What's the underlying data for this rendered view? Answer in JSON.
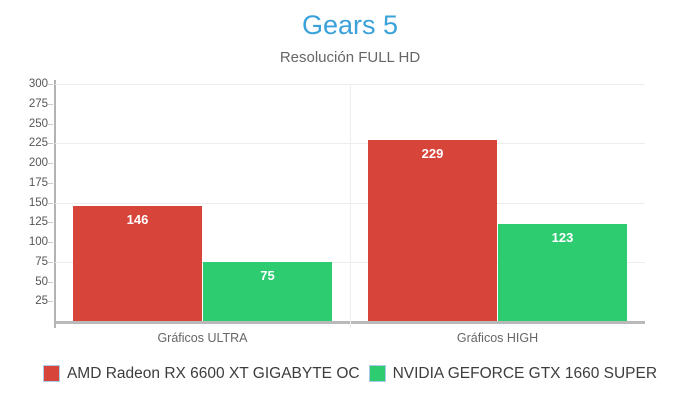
{
  "header": {
    "title": "Gears 5",
    "subtitle": "Resolución FULL HD"
  },
  "chart_data": {
    "type": "bar",
    "title": "Gears 5",
    "subtitle": "Resolución FULL HD",
    "categories": [
      "Gráficos ULTRA",
      "Gráficos HIGH"
    ],
    "series": [
      {
        "name": "AMD Radeon RX 6600 XT GIGABYTE OC",
        "color": "#d7443a",
        "values": [
          146,
          229
        ]
      },
      {
        "name": "NVIDIA GEFORCE GTX 1660 SUPER",
        "color": "#2ecc71",
        "values": [
          75,
          123
        ]
      }
    ],
    "ylim": [
      0,
      300
    ],
    "yticks": [
      300,
      275,
      250,
      225,
      200,
      175,
      150,
      125,
      100,
      75,
      50,
      25
    ],
    "gridline_values": [
      300,
      225,
      150,
      75
    ],
    "grid": true,
    "legend_position": "bottom",
    "value_labels_inside_bars": true
  },
  "colors": {
    "title": "#3aa1da",
    "subtitle": "#666666",
    "axis_line": "#b3b3b3",
    "baseline": "#b9b9b9",
    "gridline": "#ededed",
    "tick_label": "#555555",
    "category_label": "#666666",
    "legend_text": "#3d3d3d",
    "legend_swatch_border": "#abcbe9",
    "bar_value_label": "#ffffff"
  }
}
